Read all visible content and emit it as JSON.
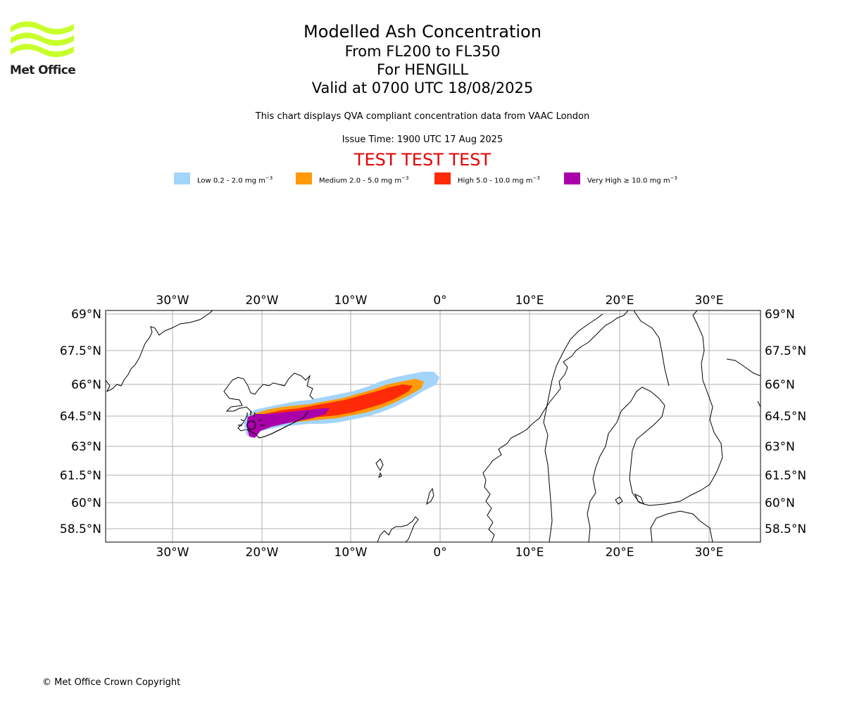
{
  "header": {
    "title": "Modelled Ash Concentration",
    "subtitle_levels": "From FL200 to FL350",
    "subtitle_volcano": "For HENGILL",
    "subtitle_valid": "Valid at 0700 UTC 18/08/2025",
    "description": "This chart displays QVA compliant concentration data from VAAC London",
    "issue_time": "Issue Time: 1900 UTC 17 Aug 2025",
    "test_banner": "TEST TEST TEST"
  },
  "logo": {
    "text": "Met Office",
    "color": "#c8ff2a"
  },
  "legend": [
    {
      "label": "Low 0.2 - 2.0 mg m",
      "color": "#a3d4fa"
    },
    {
      "label": "Medium 2.0 - 5.0 mg m",
      "color": "#ff9a0a"
    },
    {
      "label": "High 5.0 - 10.0 mg m",
      "color": "#ff2a08"
    },
    {
      "label": "Very High ≥ 10.0 mg m",
      "color": "#aa00aa"
    }
  ],
  "legend_unit_exp": "−3",
  "map": {
    "lon_ticks": [
      "30°W",
      "20°W",
      "10°W",
      "0°",
      "10°E",
      "20°E",
      "30°E"
    ],
    "lat_ticks": [
      "69°N",
      "67.5°N",
      "66°N",
      "64.5°N",
      "63°N",
      "61.5°N",
      "60°N",
      "58.5°N"
    ],
    "source_volcano": "HENGILL"
  },
  "footer": {
    "copyright": "© Met Office Crown Copyright"
  }
}
